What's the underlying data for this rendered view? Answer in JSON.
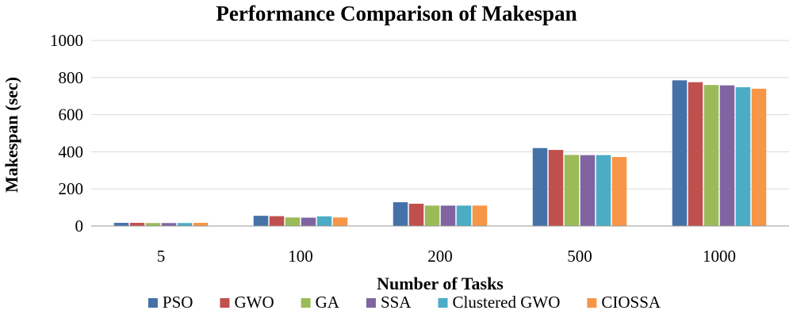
{
  "chart_data": {
    "type": "bar",
    "title": "Performance Comparison of Makespan",
    "xlabel": "Number of Tasks",
    "ylabel": "Makespan (sec)",
    "ylim": [
      0,
      1000
    ],
    "yticks": [
      "0",
      "200",
      "400",
      "600",
      "800",
      "1000"
    ],
    "grid": true,
    "legend_position": "bottom",
    "categories": [
      "5",
      "100",
      "200",
      "500",
      "1000"
    ],
    "series": [
      {
        "name": "PSO",
        "color": "#4472A8",
        "values": [
          17,
          55,
          128,
          420,
          785
        ]
      },
      {
        "name": "GWO",
        "color": "#C0504D",
        "values": [
          17,
          53,
          120,
          410,
          775
        ]
      },
      {
        "name": "GA",
        "color": "#9BBB59",
        "values": [
          16,
          46,
          110,
          383,
          760
        ]
      },
      {
        "name": "SSA",
        "color": "#8064A2",
        "values": [
          16,
          45,
          110,
          382,
          758
        ]
      },
      {
        "name": "Clustered GWO",
        "color": "#4BACC6",
        "values": [
          16,
          52,
          110,
          382,
          748
        ]
      },
      {
        "name": "CIOSSA",
        "color": "#F79646",
        "values": [
          17,
          46,
          110,
          372,
          740
        ]
      }
    ]
  }
}
